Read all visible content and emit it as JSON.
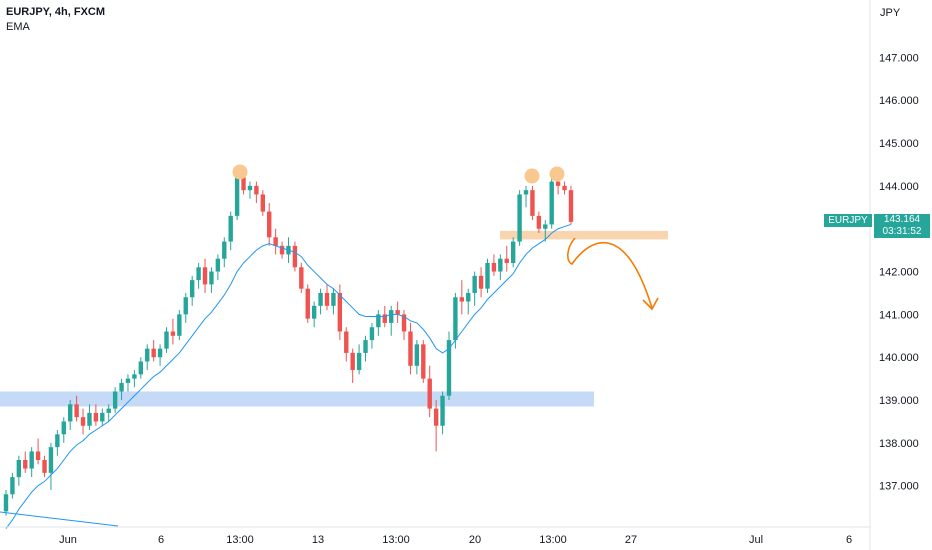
{
  "header": {
    "title": "EURJPY, 4h, FXCM",
    "indicator": "EMA"
  },
  "price_axis": {
    "unit": "JPY",
    "current_symbol": "EURJPY",
    "current_price": "143.164",
    "countdown": "03:31:52"
  },
  "colors": {
    "up": "#26a69a",
    "down": "#ef5350",
    "ema": "#2196f3",
    "support_zone": "#bbd3f5",
    "resistance_zone": "#f7cfa6",
    "peak_marker": "#f9c88f",
    "projection_arrow": "#f57c00"
  },
  "chart_data": {
    "type": "candlestick",
    "ylim": [
      136.0,
      148.0
    ],
    "y_ticks": [
      "137.000",
      "138.000",
      "139.000",
      "140.000",
      "141.000",
      "142.000",
      "143.000",
      "144.000",
      "145.000",
      "146.000",
      "147.000"
    ],
    "x_ticks": [
      "Jun",
      "6",
      "13:00",
      "13",
      "13:00",
      "20",
      "13:00",
      "27",
      "Jul",
      "6"
    ],
    "zones": [
      {
        "name": "support",
        "low": 138.85,
        "high": 139.2
      },
      {
        "name": "resistance",
        "low": 142.75,
        "high": 142.95
      }
    ],
    "candles": [
      [
        136.4,
        136.9,
        136.3,
        136.8
      ],
      [
        136.8,
        137.3,
        136.7,
        137.2
      ],
      [
        137.2,
        137.7,
        137.0,
        137.6
      ],
      [
        137.6,
        137.8,
        137.3,
        137.4
      ],
      [
        137.4,
        137.9,
        137.2,
        137.8
      ],
      [
        137.8,
        138.1,
        137.5,
        137.6
      ],
      [
        137.6,
        137.7,
        137.2,
        137.3
      ],
      [
        137.3,
        138.0,
        136.9,
        137.9
      ],
      [
        137.9,
        138.3,
        137.7,
        138.2
      ],
      [
        138.2,
        138.6,
        138.0,
        138.5
      ],
      [
        138.5,
        139.0,
        138.3,
        138.9
      ],
      [
        138.9,
        139.1,
        138.5,
        138.6
      ],
      [
        138.6,
        138.8,
        138.2,
        138.4
      ],
      [
        138.4,
        138.9,
        138.3,
        138.7
      ],
      [
        138.7,
        138.9,
        138.4,
        138.5
      ],
      [
        138.5,
        138.8,
        138.4,
        138.7
      ],
      [
        138.7,
        138.9,
        138.5,
        138.8
      ],
      [
        138.8,
        139.3,
        138.7,
        139.2
      ],
      [
        139.2,
        139.5,
        139.0,
        139.4
      ],
      [
        139.4,
        139.6,
        139.2,
        139.5
      ],
      [
        139.5,
        139.7,
        139.3,
        139.6
      ],
      [
        139.6,
        140.0,
        139.5,
        139.9
      ],
      [
        139.9,
        140.3,
        139.7,
        140.2
      ],
      [
        140.2,
        140.4,
        139.9,
        140.0
      ],
      [
        140.0,
        140.3,
        139.8,
        140.2
      ],
      [
        140.2,
        140.7,
        140.1,
        140.6
      ],
      [
        140.6,
        140.9,
        140.3,
        140.5
      ],
      [
        140.5,
        141.1,
        140.4,
        141.0
      ],
      [
        141.0,
        141.5,
        140.8,
        141.4
      ],
      [
        141.4,
        141.9,
        141.2,
        141.8
      ],
      [
        141.8,
        142.2,
        141.6,
        142.1
      ],
      [
        142.1,
        142.3,
        141.5,
        141.7
      ],
      [
        141.7,
        142.1,
        141.5,
        142.0
      ],
      [
        142.0,
        142.4,
        141.8,
        142.3
      ],
      [
        142.3,
        142.8,
        142.1,
        142.7
      ],
      [
        142.7,
        143.4,
        142.5,
        143.3
      ],
      [
        143.3,
        144.3,
        143.2,
        144.2
      ],
      [
        144.2,
        144.3,
        143.8,
        143.9
      ],
      [
        143.9,
        144.1,
        143.7,
        144.0
      ],
      [
        144.0,
        144.1,
        143.6,
        143.8
      ],
      [
        143.8,
        143.9,
        143.3,
        143.4
      ],
      [
        143.4,
        143.6,
        142.6,
        142.8
      ],
      [
        142.8,
        143.0,
        142.4,
        142.6
      ],
      [
        142.6,
        142.7,
        142.3,
        142.4
      ],
      [
        142.4,
        142.8,
        142.2,
        142.6
      ],
      [
        142.6,
        142.7,
        142.0,
        142.1
      ],
      [
        142.1,
        142.2,
        141.5,
        141.6
      ],
      [
        141.6,
        141.7,
        140.8,
        140.9
      ],
      [
        140.9,
        141.3,
        140.7,
        141.2
      ],
      [
        141.2,
        141.6,
        141.0,
        141.5
      ],
      [
        141.5,
        141.7,
        141.1,
        141.2
      ],
      [
        141.2,
        141.6,
        141.0,
        141.5
      ],
      [
        141.5,
        141.7,
        140.4,
        140.6
      ],
      [
        140.6,
        140.7,
        139.9,
        140.1
      ],
      [
        140.1,
        140.2,
        139.4,
        139.7
      ],
      [
        139.7,
        140.3,
        139.6,
        140.1
      ],
      [
        140.1,
        140.5,
        139.9,
        140.4
      ],
      [
        140.4,
        140.8,
        140.2,
        140.7
      ],
      [
        140.7,
        141.1,
        140.5,
        141.0
      ],
      [
        141.0,
        141.2,
        140.7,
        140.8
      ],
      [
        140.8,
        141.2,
        140.5,
        141.1
      ],
      [
        141.1,
        141.3,
        140.8,
        141.0
      ],
      [
        141.0,
        141.1,
        140.4,
        140.6
      ],
      [
        140.6,
        140.8,
        139.6,
        139.8
      ],
      [
        139.8,
        140.4,
        139.6,
        140.3
      ],
      [
        140.3,
        140.4,
        139.4,
        139.5
      ],
      [
        139.5,
        139.8,
        138.6,
        138.8
      ],
      [
        138.8,
        139.0,
        137.8,
        138.4
      ],
      [
        138.4,
        139.2,
        138.2,
        139.1
      ],
      [
        139.1,
        140.6,
        139.0,
        140.4
      ],
      [
        140.4,
        141.5,
        140.2,
        141.4
      ],
      [
        141.4,
        141.8,
        141.0,
        141.3
      ],
      [
        141.3,
        141.6,
        141.0,
        141.5
      ],
      [
        141.5,
        142.0,
        141.2,
        141.9
      ],
      [
        141.9,
        142.1,
        141.4,
        141.6
      ],
      [
        141.6,
        142.3,
        141.5,
        142.2
      ],
      [
        142.2,
        142.4,
        141.9,
        142.0
      ],
      [
        142.0,
        142.4,
        141.8,
        142.3
      ],
      [
        142.3,
        142.6,
        142.0,
        142.2
      ],
      [
        142.2,
        142.8,
        142.1,
        142.7
      ],
      [
        142.7,
        143.9,
        142.6,
        143.8
      ],
      [
        143.8,
        144.0,
        143.5,
        143.9
      ],
      [
        143.9,
        144.0,
        143.2,
        143.3
      ],
      [
        143.3,
        143.4,
        142.9,
        143.0
      ],
      [
        143.0,
        143.2,
        142.7,
        143.1
      ],
      [
        143.1,
        144.2,
        143.0,
        144.1
      ],
      [
        144.1,
        144.3,
        143.8,
        144.0
      ],
      [
        144.0,
        144.1,
        143.8,
        143.9
      ],
      [
        143.9,
        144.0,
        143.1,
        143.16
      ]
    ],
    "ema": [
      136.0,
      136.2,
      136.45,
      136.65,
      136.85,
      137.0,
      137.1,
      137.25,
      137.4,
      137.6,
      137.8,
      137.95,
      138.05,
      138.2,
      138.3,
      138.4,
      138.5,
      138.65,
      138.8,
      138.95,
      139.1,
      139.25,
      139.4,
      139.55,
      139.65,
      139.8,
      139.95,
      140.1,
      140.3,
      140.5,
      140.7,
      140.9,
      141.05,
      141.25,
      141.45,
      141.7,
      142.0,
      142.2,
      142.35,
      142.5,
      142.6,
      142.65,
      142.6,
      142.55,
      142.5,
      142.45,
      142.35,
      142.15,
      142.0,
      141.85,
      141.7,
      141.6,
      141.45,
      141.3,
      141.15,
      141.0,
      140.95,
      140.95,
      140.95,
      140.95,
      141.0,
      141.0,
      140.95,
      140.85,
      140.8,
      140.65,
      140.45,
      140.2,
      140.1,
      140.2,
      140.4,
      140.6,
      140.8,
      141.0,
      141.15,
      141.35,
      141.5,
      141.65,
      141.8,
      141.95,
      142.2,
      142.4,
      142.55,
      142.65,
      142.75,
      142.9,
      143.0,
      143.05,
      143.1
    ]
  }
}
